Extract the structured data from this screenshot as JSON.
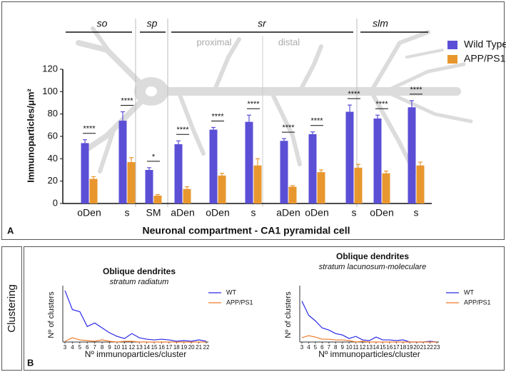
{
  "panel_labels": {
    "a": "A",
    "b": "B",
    "b_side": "Clustering"
  },
  "chart_data": [
    {
      "type": "bar",
      "y_label": "Immunoparticles/μm²",
      "x_label": "Neuronal compartment - CA1 pyramidal cell",
      "regions": [
        "so",
        "sp",
        "sr",
        "slm"
      ],
      "subregions": [
        "proximal",
        "distal"
      ],
      "categories": [
        "oDen",
        "s",
        "SM",
        "aDen",
        "oDen",
        "s",
        "aDen",
        "oDen",
        "s",
        "oDen",
        "s"
      ],
      "series": [
        {
          "name": "Wild Type",
          "color": "#5b4fd6",
          "values": [
            54,
            74,
            30,
            53,
            66,
            73,
            56,
            62,
            82,
            76,
            86
          ],
          "errors": [
            3,
            8,
            2,
            3,
            2,
            6,
            2,
            2,
            6,
            3,
            6
          ]
        },
        {
          "name": "APP/PS1",
          "color": "#e8972e",
          "values": [
            22,
            37,
            7,
            13,
            25,
            34,
            15,
            28,
            32,
            27,
            34
          ],
          "errors": [
            2,
            4,
            1,
            2,
            2,
            6,
            1,
            2,
            3,
            2,
            3
          ]
        }
      ],
      "significance": [
        "****",
        "****",
        "*",
        "****",
        "****",
        "****",
        "****",
        "****",
        "****",
        "****",
        "****"
      ],
      "ylim": [
        0,
        120
      ],
      "yticks": [
        0,
        20,
        40,
        60,
        80,
        100,
        120
      ]
    },
    {
      "type": "line",
      "title": "Oblique dendrites",
      "subtitle": "stratum radiatum",
      "x_label": "Nº immunoparticles/cluster",
      "y_label": "Nº of clusters",
      "x": [
        3,
        4,
        5,
        6,
        7,
        8,
        9,
        10,
        11,
        12,
        13,
        14,
        15,
        16,
        17,
        18,
        19,
        20,
        21,
        22
      ],
      "series": [
        {
          "name": "WT",
          "color": "#2a2ae8",
          "values": [
            73,
            46,
            43,
            22,
            27,
            20,
            13,
            8,
            5,
            12,
            6,
            4,
            3,
            4,
            3,
            1,
            2,
            1,
            3,
            1
          ]
        },
        {
          "name": "APP/PS1",
          "color": "#f07a2a",
          "values": [
            1,
            6,
            3,
            2,
            1,
            3,
            1,
            0,
            1,
            1,
            0,
            0,
            0,
            0,
            0,
            0,
            0,
            0,
            0,
            0
          ]
        }
      ],
      "xlim": [
        3,
        22
      ],
      "xticks": [
        3,
        4,
        5,
        6,
        7,
        8,
        9,
        10,
        11,
        12,
        13,
        14,
        15,
        16,
        17,
        18,
        19,
        20,
        21,
        22
      ],
      "ylim": [
        0,
        80
      ]
    },
    {
      "type": "line",
      "title": "Oblique dendrites",
      "subtitle": "stratum lacunosum-moleculare",
      "x_label": "Nº immunoparticles/cluster",
      "y_label": "Nº of clusters",
      "x": [
        3,
        4,
        5,
        6,
        7,
        8,
        9,
        10,
        11,
        12,
        13,
        14,
        15,
        16,
        17,
        18,
        19,
        20,
        21,
        22,
        23
      ],
      "series": [
        {
          "name": "WT",
          "color": "#2a2ae8",
          "values": [
            58,
            38,
            30,
            20,
            17,
            12,
            10,
            5,
            8,
            3,
            2,
            7,
            3,
            3,
            2,
            3,
            0,
            0,
            0,
            1,
            0
          ]
        },
        {
          "name": "APP/PS1",
          "color": "#f07a2a",
          "values": [
            6,
            9,
            7,
            4,
            4,
            3,
            3,
            2,
            0,
            1,
            0,
            0,
            0,
            0,
            0,
            0,
            0,
            0,
            0,
            0,
            0
          ]
        }
      ],
      "xlim": [
        3,
        23
      ],
      "xticks": [
        3,
        4,
        5,
        6,
        7,
        8,
        9,
        10,
        11,
        12,
        13,
        14,
        15,
        16,
        17,
        18,
        19,
        20,
        21,
        22,
        23
      ],
      "ylim": [
        0,
        80
      ]
    }
  ]
}
